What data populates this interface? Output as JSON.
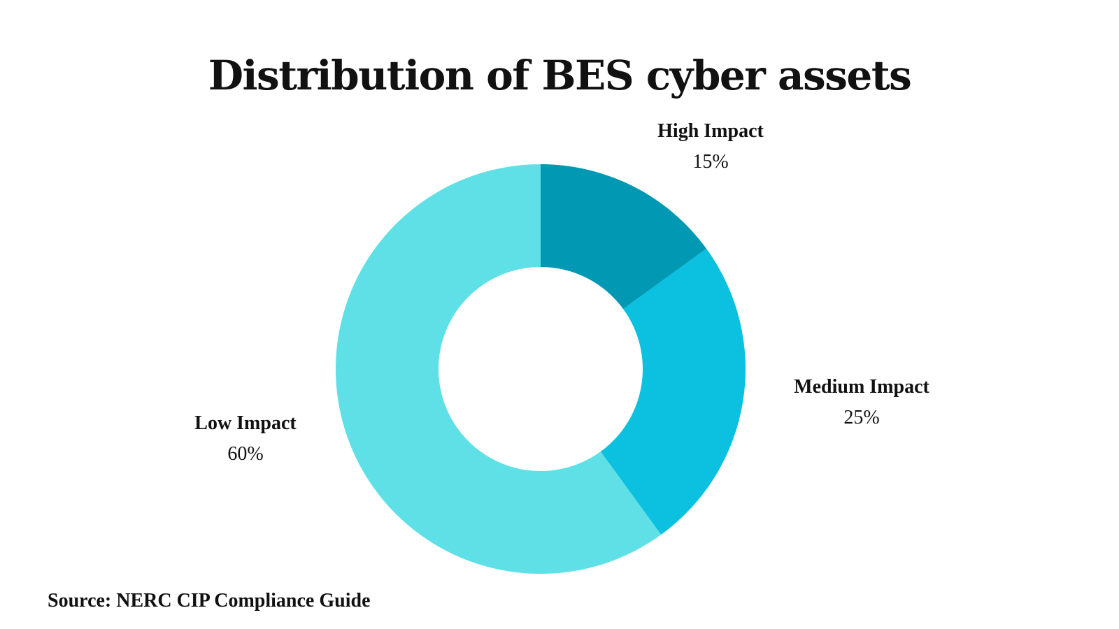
{
  "chart_data": {
    "type": "pie",
    "title": "Distribution of BES cyber assets",
    "donut": true,
    "slices": [
      {
        "label": "High Impact",
        "value": 15,
        "value_text": "15%",
        "color": "#0098b3"
      },
      {
        "label": "Medium Impact",
        "value": 25,
        "value_text": "25%",
        "color": "#0cc0df"
      },
      {
        "label": "Low Impact",
        "value": 60,
        "value_text": "60%",
        "color": "#5ee0e6"
      }
    ],
    "legend": "none"
  },
  "source": "Source: NERC CIP Compliance Guide"
}
